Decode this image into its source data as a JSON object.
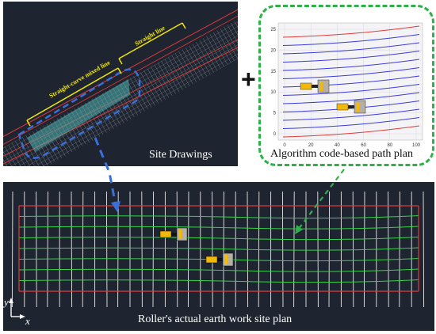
{
  "site_drawing": {
    "caption": "Site Drawings",
    "label_straight": "Straight line",
    "label_mixed": "Straight-curve mixed line"
  },
  "path_plan": {
    "caption": "Algorithm code-based path plan",
    "x_ticks": [
      "0",
      "20",
      "40",
      "60",
      "80",
      "100"
    ],
    "y_ticks": [
      "0",
      "5",
      "10",
      "15",
      "20",
      "25"
    ]
  },
  "worksite": {
    "caption": "Roller's actual earth work site plan",
    "axis_x": "x",
    "axis_y": "y"
  },
  "colors": {
    "accent_green": "#2fb14a",
    "accent_blue": "#3b6fd8",
    "boundary_red": "#e03a3a",
    "path_blue": "#3a3ae0",
    "grid_green": "#37d24a",
    "dark_bg": "#1f2530",
    "roller_yellow": "#f2b90a"
  },
  "plus_symbol": "+"
}
